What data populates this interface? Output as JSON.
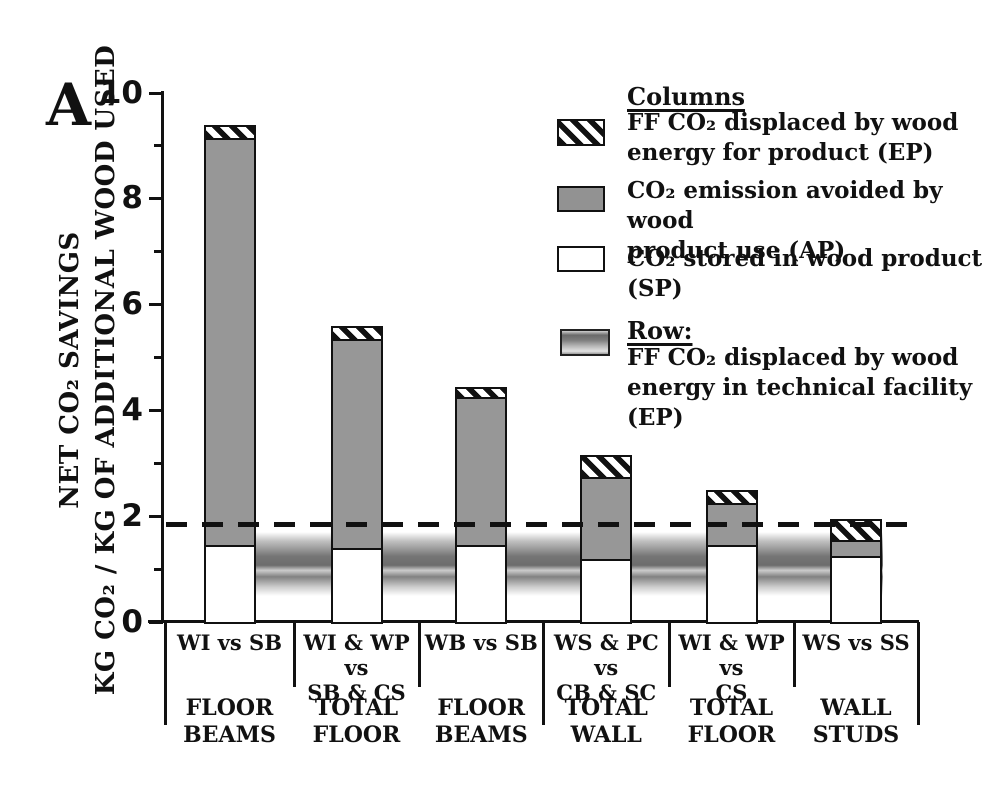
{
  "panel_label": "A",
  "y_axis": {
    "title_line1": "NET CO₂ SAVINGS",
    "title_line2": "KG CO₂ / KG OF ADDITIONAL WOOD USED",
    "major_ticks": [
      0,
      2,
      4,
      6,
      8,
      10
    ],
    "minor_ticks": [
      1,
      3,
      5,
      7,
      9
    ]
  },
  "chart_data": {
    "type": "bar",
    "stacked": true,
    "title": "",
    "xlabel": "",
    "ylabel": "NET CO₂ SAVINGS, KG CO₂ / KG OF ADDITIONAL WOOD USED",
    "ylim": [
      0,
      10
    ],
    "grid": false,
    "legend_position": "upper-right",
    "categories": [
      {
        "comparison": "WI vs SB",
        "assembly": "FLOOR\nBEAMS"
      },
      {
        "comparison": "WI & WP vs\nSB & CS",
        "assembly": "TOTAL\nFLOOR"
      },
      {
        "comparison": "WB vs SB",
        "assembly": "FLOOR\nBEAMS"
      },
      {
        "comparison": "WS & PC vs\nCB & SC",
        "assembly": "TOTAL\nWALL"
      },
      {
        "comparison": "WI & WP vs\nCS",
        "assembly": "TOTAL\nFLOOR"
      },
      {
        "comparison": "WS vs SS",
        "assembly": "WALL\nSTUDS"
      }
    ],
    "series": [
      {
        "name": "CO₂ stored in wood product (SP)",
        "swatch": "white",
        "values": [
          1.45,
          1.4,
          1.45,
          1.2,
          1.45,
          1.25
        ]
      },
      {
        "name": "CO₂ emission avoided by wood product use (AP)",
        "swatch": "gray",
        "values": [
          7.7,
          3.95,
          2.8,
          1.55,
          0.8,
          0.3
        ]
      },
      {
        "name": "FF CO₂ displaced by wood energy for product (EP)",
        "swatch": "hatch",
        "values": [
          0.25,
          0.25,
          0.2,
          0.4,
          0.25,
          0.4
        ]
      }
    ],
    "totals": [
      9.4,
      5.6,
      4.45,
      3.15,
      2.5,
      1.95
    ],
    "reference_line": {
      "value": 1.8,
      "style": "dashed"
    },
    "row_band": {
      "from": 0.5,
      "to": 1.7,
      "meaning": "FF CO₂ displaced by wood energy in technical facility (EP)"
    }
  },
  "legend": {
    "columns_title": "Columns",
    "row_title": "Row:",
    "items": [
      {
        "line1": "FF CO₂ displaced by wood",
        "line2": "energy for product (EP)"
      },
      {
        "line1": "CO₂ emission avoided by wood",
        "line2": "product use (AP)"
      },
      {
        "line1": "CO₂ stored in wood product",
        "line2": "(SP)"
      },
      {
        "line1": "FF CO₂ displaced by wood",
        "line2": "energy in technical facility (EP)"
      }
    ]
  }
}
